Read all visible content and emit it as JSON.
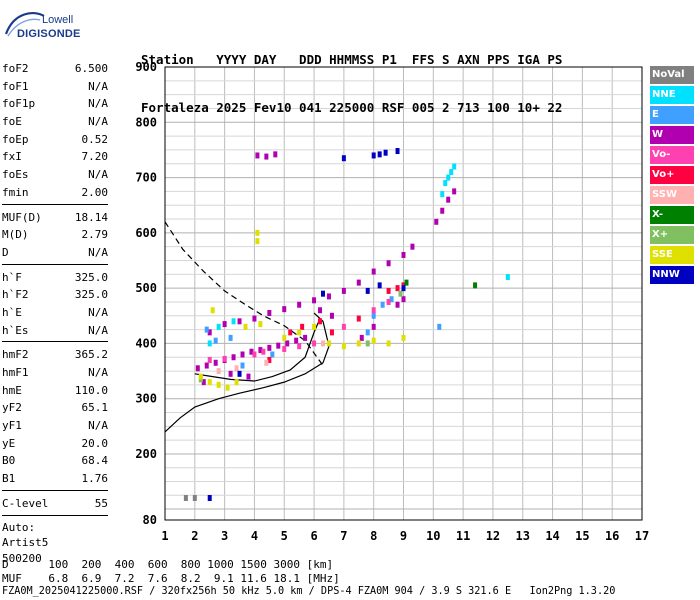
{
  "logo": {
    "line1": "Lowell",
    "line2": "DIGISONDE"
  },
  "header": {
    "line1": "Station   YYYY DAY   DDD HHMMSS P1  FFS S AXN PPS IGA PS",
    "line2": "Fortaleza 2025 Fev10 041 225000 RSF 005 2 713 100 10+ 22"
  },
  "params": {
    "group1": [
      {
        "name": "foF2",
        "value": "6.500"
      },
      {
        "name": "foF1",
        "value": "N/A"
      },
      {
        "name": "foF1p",
        "value": "N/A"
      },
      {
        "name": "foE",
        "value": "N/A"
      },
      {
        "name": "foEp",
        "value": "0.52"
      },
      {
        "name": "fxI",
        "value": "7.20"
      },
      {
        "name": "foEs",
        "value": "N/A"
      },
      {
        "name": "fmin",
        "value": "2.00"
      }
    ],
    "group2": [
      {
        "name": "MUF(D)",
        "value": "18.14"
      },
      {
        "name": "M(D)",
        "value": "2.79"
      },
      {
        "name": "D",
        "value": "N/A"
      }
    ],
    "group3": [
      {
        "name": "h`F",
        "value": "325.0"
      },
      {
        "name": "h`F2",
        "value": "325.0"
      },
      {
        "name": "h`E",
        "value": "N/A"
      },
      {
        "name": "h`Es",
        "value": "N/A"
      }
    ],
    "group4": [
      {
        "name": "hmF2",
        "value": "365.2"
      },
      {
        "name": "hmF1",
        "value": "N/A"
      },
      {
        "name": "hmE",
        "value": "110.0"
      },
      {
        "name": "yF2",
        "value": "65.1"
      },
      {
        "name": "yF1",
        "value": "N/A"
      },
      {
        "name": "yE",
        "value": "20.0"
      },
      {
        "name": "B0",
        "value": "68.4"
      },
      {
        "name": "B1",
        "value": "1.76"
      }
    ],
    "group5": [
      {
        "name": "C-level",
        "value": "55"
      }
    ],
    "extra": [
      "Auto:",
      "Artist5",
      "500200"
    ]
  },
  "legend": [
    {
      "label": "NoVal",
      "color": "#808080"
    },
    {
      "label": "NNE",
      "color": "#00e0ff"
    },
    {
      "label": "E",
      "color": "#40a0ff"
    },
    {
      "label": "W",
      "color": "#b000b0"
    },
    {
      "label": "Vo-",
      "color": "#ff40b0"
    },
    {
      "label": "Vo+",
      "color": "#ff0040"
    },
    {
      "label": "SSW",
      "color": "#ffb0b0"
    },
    {
      "label": "X-",
      "color": "#008000"
    },
    {
      "label": "X+",
      "color": "#80c060"
    },
    {
      "label": "SSE",
      "color": "#e0e000"
    },
    {
      "label": "NNW",
      "color": "#0000c0"
    }
  ],
  "bottom": {
    "line1": "D      100  200  400  600  800 1000 1500 3000 [km]",
    "line2": "MUF    6.8  6.9  7.2  7.6  8.2  9.1 11.6 18.1 [MHz]",
    "line3": "FZA0M_2025041225000.RSF / 320fx256h 50 kHz 5.0 km / DPS-4 FZA0M 904 / 3.9 S 321.6 E   Ion2Png 1.3.20"
  },
  "chart_data": {
    "type": "scatter",
    "xlim": [
      1,
      17
    ],
    "ylim": [
      80,
      900
    ],
    "x_ticks": [
      "1",
      "2",
      "3",
      "4",
      "5",
      "6",
      "7",
      "8",
      "9",
      "10",
      "11",
      "12",
      "13",
      "14",
      "15",
      "16",
      "17"
    ],
    "y_ticks": [
      "80",
      "200",
      "300",
      "400",
      "500",
      "600",
      "700",
      "800",
      "900"
    ],
    "grid": true,
    "series": [
      {
        "name": "W",
        "color": "#b000b0",
        "points": [
          [
            2.1,
            355
          ],
          [
            2.4,
            360
          ],
          [
            2.7,
            365
          ],
          [
            3.0,
            370
          ],
          [
            3.3,
            375
          ],
          [
            3.6,
            380
          ],
          [
            3.9,
            385
          ],
          [
            4.2,
            388
          ],
          [
            4.5,
            392
          ],
          [
            4.8,
            396
          ],
          [
            5.1,
            400
          ],
          [
            5.4,
            405
          ],
          [
            5.7,
            410
          ],
          [
            2.5,
            420
          ],
          [
            3.0,
            435
          ],
          [
            3.5,
            440
          ],
          [
            4.0,
            445
          ],
          [
            4.5,
            455
          ],
          [
            5.0,
            462
          ],
          [
            5.5,
            470
          ],
          [
            6.0,
            478
          ],
          [
            6.5,
            485
          ],
          [
            7.0,
            495
          ],
          [
            7.5,
            510
          ],
          [
            8.0,
            530
          ],
          [
            8.5,
            545
          ],
          [
            9.0,
            560
          ],
          [
            9.3,
            575
          ],
          [
            10.1,
            620
          ],
          [
            10.3,
            640
          ],
          [
            10.5,
            660
          ],
          [
            10.7,
            675
          ],
          [
            4.1,
            740
          ],
          [
            4.4,
            738
          ],
          [
            4.7,
            742
          ],
          [
            9.0,
            480
          ],
          [
            8.8,
            470
          ],
          [
            8.0,
            430
          ],
          [
            7.6,
            410
          ],
          [
            6.2,
            460
          ],
          [
            6.6,
            450
          ],
          [
            3.2,
            345
          ],
          [
            3.8,
            340
          ],
          [
            2.3,
            330
          ]
        ]
      },
      {
        "name": "NNE",
        "color": "#00e0ff",
        "points": [
          [
            10.6,
            710
          ],
          [
            10.7,
            720
          ],
          [
            10.5,
            700
          ],
          [
            10.4,
            690
          ],
          [
            10.3,
            670
          ],
          [
            2.8,
            430
          ],
          [
            3.3,
            440
          ],
          [
            2.5,
            400
          ],
          [
            12.5,
            520
          ]
        ]
      },
      {
        "name": "E",
        "color": "#40a0ff",
        "points": [
          [
            2.4,
            425
          ],
          [
            2.7,
            405
          ],
          [
            3.2,
            410
          ],
          [
            7.8,
            420
          ],
          [
            8.0,
            450
          ],
          [
            8.3,
            470
          ],
          [
            8.6,
            480
          ],
          [
            10.2,
            430
          ],
          [
            4.6,
            380
          ],
          [
            3.6,
            360
          ]
        ]
      },
      {
        "name": "Vo-",
        "color": "#ff40b0",
        "points": [
          [
            4.0,
            380
          ],
          [
            4.3,
            385
          ],
          [
            5.0,
            390
          ],
          [
            5.5,
            395
          ],
          [
            6.0,
            400
          ],
          [
            7.0,
            430
          ],
          [
            8.0,
            460
          ],
          [
            8.5,
            475
          ],
          [
            2.5,
            370
          ],
          [
            3.0,
            372
          ]
        ]
      },
      {
        "name": "Vo+",
        "color": "#ff0040",
        "points": [
          [
            5.2,
            420
          ],
          [
            5.6,
            430
          ],
          [
            6.2,
            440
          ],
          [
            6.6,
            420
          ],
          [
            7.5,
            445
          ],
          [
            8.5,
            495
          ],
          [
            9.0,
            505
          ],
          [
            8.8,
            500
          ],
          [
            4.5,
            370
          ]
        ]
      },
      {
        "name": "SSW",
        "color": "#ffb0b0",
        "points": [
          [
            2.8,
            350
          ],
          [
            3.4,
            355
          ],
          [
            4.4,
            365
          ],
          [
            6.3,
            400
          ]
        ]
      },
      {
        "name": "X-",
        "color": "#008000",
        "points": [
          [
            11.4,
            505
          ],
          [
            9.1,
            510
          ]
        ]
      },
      {
        "name": "X+",
        "color": "#80c060",
        "points": [
          [
            8.9,
            490
          ],
          [
            7.8,
            400
          ],
          [
            2.2,
            335
          ]
        ]
      },
      {
        "name": "SSE",
        "color": "#e0e000",
        "points": [
          [
            2.2,
            340
          ],
          [
            2.5,
            330
          ],
          [
            2.8,
            325
          ],
          [
            3.1,
            320
          ],
          [
            3.4,
            330
          ],
          [
            4.1,
            600
          ],
          [
            4.1,
            585
          ],
          [
            5.0,
            410
          ],
          [
            5.5,
            420
          ],
          [
            6.0,
            430
          ],
          [
            6.5,
            400
          ],
          [
            7.0,
            395
          ],
          [
            7.5,
            400
          ],
          [
            8.0,
            405
          ],
          [
            8.5,
            400
          ],
          [
            9.0,
            410
          ],
          [
            3.7,
            430
          ],
          [
            4.2,
            435
          ],
          [
            2.6,
            460
          ]
        ]
      },
      {
        "name": "NNW",
        "color": "#0000c0",
        "points": [
          [
            8.0,
            740
          ],
          [
            8.2,
            742
          ],
          [
            8.4,
            745
          ],
          [
            8.8,
            748
          ],
          [
            7.0,
            735
          ],
          [
            7.8,
            495
          ],
          [
            8.2,
            505
          ],
          [
            9.0,
            500
          ],
          [
            6.3,
            490
          ],
          [
            3.5,
            345
          ],
          [
            2.5,
            120
          ]
        ]
      },
      {
        "name": "NoVal",
        "color": "#808080",
        "points": [
          [
            1.7,
            120
          ],
          [
            2.0,
            120
          ]
        ]
      }
    ]
  }
}
